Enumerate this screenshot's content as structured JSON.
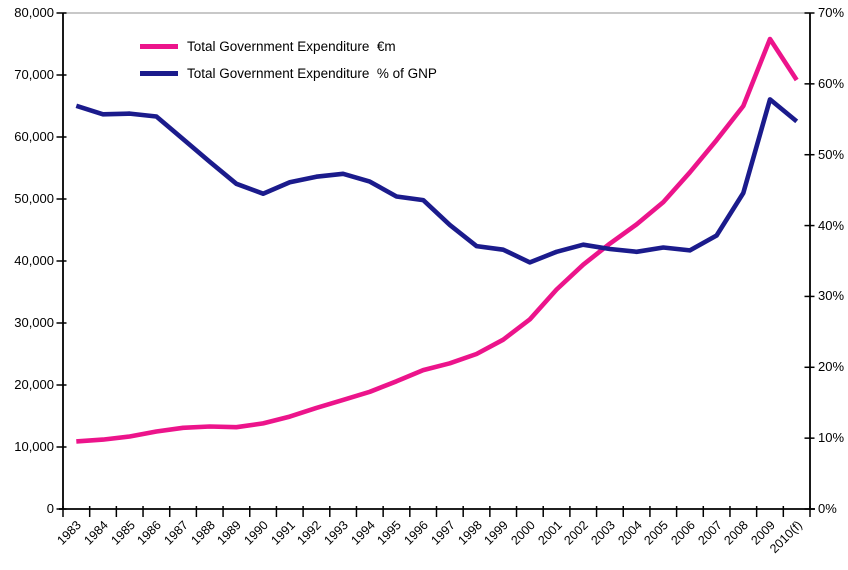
{
  "chart_data": {
    "type": "line",
    "title": "",
    "categories": [
      "1983",
      "1984",
      "1985",
      "1986",
      "1987",
      "1988",
      "1989",
      "1990",
      "1991",
      "1992",
      "1993",
      "1994",
      "1995",
      "1996",
      "1997",
      "1998",
      "1999",
      "2000",
      "2001",
      "2002",
      "2003",
      "2004",
      "2005",
      "2006",
      "2007",
      "2008",
      "2009",
      "2010(f)"
    ],
    "series": [
      {
        "name": "Total Government Expenditure  €m",
        "axis": "left",
        "color": "#EC148B",
        "values": [
          10900,
          11200,
          11700,
          12500,
          13100,
          13300,
          13200,
          13800,
          14900,
          16300,
          17600,
          18900,
          20600,
          22400,
          23500,
          25000,
          27300,
          30600,
          35400,
          39400,
          42800,
          45900,
          49500,
          54300,
          59500,
          65000,
          75800,
          69200
        ]
      },
      {
        "name": "Total Government Expenditure  % of GNP",
        "axis": "right",
        "color": "#1B1B8C",
        "values": [
          56.9,
          55.7,
          55.8,
          55.4,
          52.2,
          49.0,
          45.9,
          44.5,
          46.1,
          46.9,
          47.3,
          46.2,
          44.1,
          43.6,
          40.1,
          37.1,
          36.6,
          34.8,
          36.3,
          37.3,
          36.7,
          36.3,
          36.9,
          36.5,
          38.6,
          44.6,
          57.8,
          54.7
        ]
      }
    ],
    "left_axis": {
      "min": 0,
      "max": 80000,
      "step": 10000,
      "tick_labels": [
        "0",
        "10,000",
        "20,000",
        "30,000",
        "40,000",
        "50,000",
        "60,000",
        "70,000",
        "80,000"
      ]
    },
    "right_axis": {
      "min": 0,
      "max": 70,
      "step": 10,
      "tick_labels": [
        "0%",
        "10%",
        "20%",
        "30%",
        "40%",
        "50%",
        "60%",
        "70%"
      ]
    },
    "legend_position": "top-left-inside",
    "grid": "top-border-only",
    "axis_color": "#000000",
    "top_gridline_color": "#a6a6a6"
  }
}
